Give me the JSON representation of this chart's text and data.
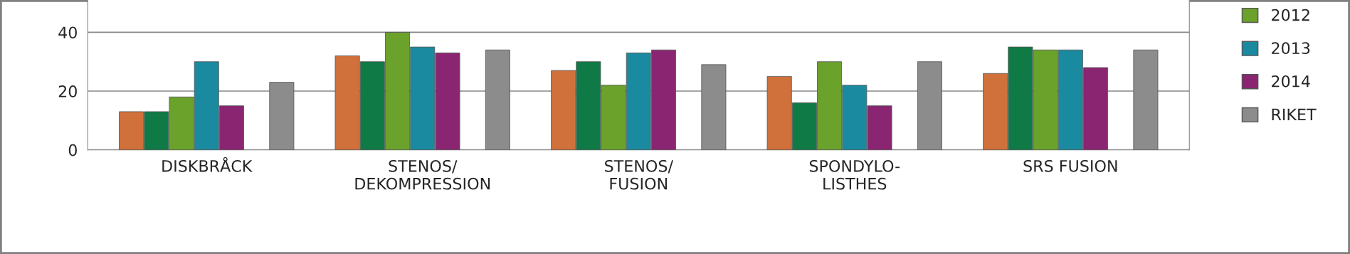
{
  "chart_data": {
    "type": "bar",
    "categories": [
      "DISKBRÅCK",
      "STENOS/\nDEKOMPRESSION",
      "STENOS/\nFUSION",
      "SPONDYLO-\nLISTHES",
      "SRS FUSION"
    ],
    "series": [
      {
        "color": "#d0703a",
        "values": [
          13,
          32,
          27,
          25,
          26
        ]
      },
      {
        "color": "#0f7a45",
        "values": [
          13,
          30,
          30,
          16,
          35
        ]
      },
      {
        "name": "2012",
        "color": "#6aa22c",
        "values": [
          18,
          40,
          22,
          30,
          34
        ]
      },
      {
        "name": "2013",
        "color": "#1a8aa0",
        "values": [
          30,
          35,
          33,
          22,
          34
        ]
      },
      {
        "name": "2014",
        "color": "#8a2572",
        "values": [
          15,
          33,
          34,
          15,
          28
        ]
      },
      {
        "values": [
          null,
          null,
          null,
          null,
          null
        ]
      },
      {
        "name": "RIKET",
        "color": "#8c8c8c",
        "values": [
          23,
          34,
          29,
          30,
          34
        ]
      }
    ],
    "ylim": [
      0,
      51
    ],
    "yticks": [
      0,
      20,
      40
    ],
    "grid": "y",
    "legend": "right"
  }
}
